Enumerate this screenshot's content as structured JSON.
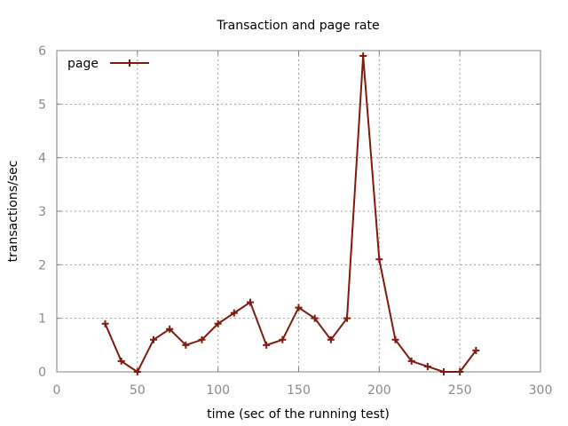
{
  "chart_data": {
    "type": "line",
    "title": "Transaction and page rate",
    "xlabel": "time (sec of the running test)",
    "ylabel": "transactions/sec",
    "xlim": [
      0,
      300
    ],
    "ylim": [
      0,
      6
    ],
    "xticks": [
      0,
      50,
      100,
      150,
      200,
      250,
      300
    ],
    "yticks": [
      0,
      1,
      2,
      3,
      4,
      5,
      6
    ],
    "grid": true,
    "legend_position": "top-left",
    "series": [
      {
        "name": "page",
        "color": "#7f1a0f",
        "marker": "plus",
        "points": [
          {
            "x": 30,
            "y": 0.9
          },
          {
            "x": 40,
            "y": 0.2
          },
          {
            "x": 50,
            "y": 0.0
          },
          {
            "x": 60,
            "y": 0.6
          },
          {
            "x": 70,
            "y": 0.8
          },
          {
            "x": 80,
            "y": 0.5
          },
          {
            "x": 90,
            "y": 0.6
          },
          {
            "x": 100,
            "y": 0.9
          },
          {
            "x": 110,
            "y": 1.1
          },
          {
            "x": 120,
            "y": 1.3
          },
          {
            "x": 130,
            "y": 0.5
          },
          {
            "x": 140,
            "y": 0.6
          },
          {
            "x": 150,
            "y": 1.2
          },
          {
            "x": 160,
            "y": 1.0
          },
          {
            "x": 170,
            "y": 0.6
          },
          {
            "x": 180,
            "y": 1.0
          },
          {
            "x": 190,
            "y": 5.9
          },
          {
            "x": 200,
            "y": 2.1
          },
          {
            "x": 210,
            "y": 0.6
          },
          {
            "x": 220,
            "y": 0.2
          },
          {
            "x": 230,
            "y": 0.1
          },
          {
            "x": 240,
            "y": 0.0
          },
          {
            "x": 250,
            "y": 0.0
          },
          {
            "x": 260,
            "y": 0.4
          }
        ]
      }
    ]
  }
}
